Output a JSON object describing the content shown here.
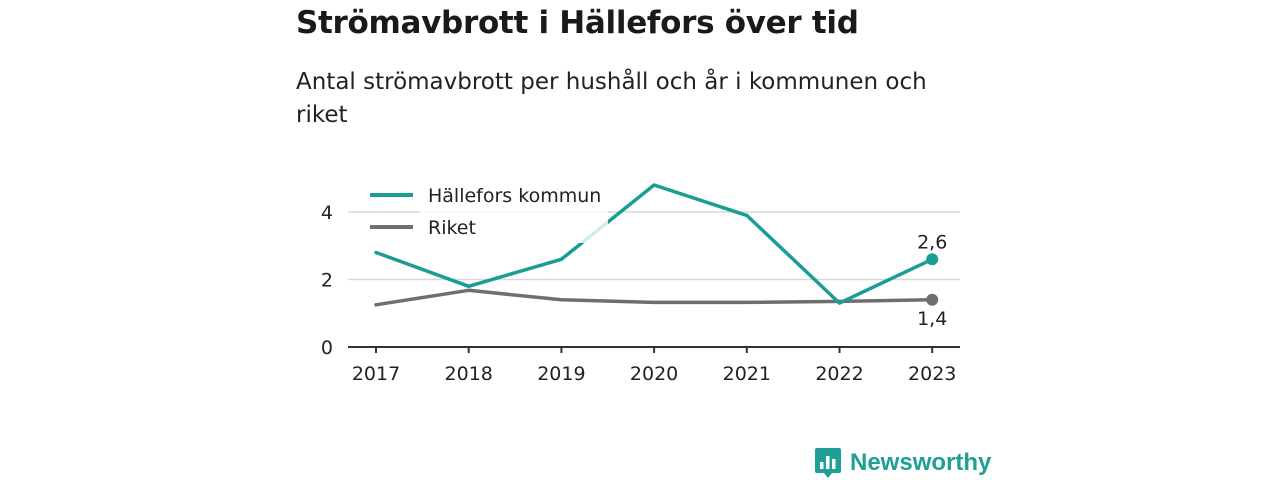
{
  "header": {
    "title": "Strömavbrott i Hällefors över tid",
    "subtitle": "Antal strömavbrott per hushåll och år i kommunen och riket"
  },
  "brand": {
    "name": "Newsworthy",
    "icon": "newsworthy-logo-icon"
  },
  "colors": {
    "teal": "#1a9e94",
    "gray": "#6e6e75",
    "grid": "#d9d9d9",
    "axis": "#333333"
  },
  "chart_data": {
    "type": "line",
    "categories": [
      "2017",
      "2018",
      "2019",
      "2020",
      "2021",
      "2022",
      "2023"
    ],
    "series": [
      {
        "name": "Hällefors kommun",
        "color": "#1a9e94",
        "values": [
          2.8,
          1.8,
          2.6,
          4.8,
          3.9,
          1.3,
          2.6
        ],
        "end_label": "2,6"
      },
      {
        "name": "Riket",
        "color": "#6e6e75",
        "values": [
          1.25,
          1.68,
          1.4,
          1.32,
          1.32,
          1.35,
          1.4
        ],
        "end_label": "1,4"
      }
    ],
    "yticks": [
      0,
      2,
      4
    ],
    "ylim": [
      0,
      4.8
    ],
    "grid": true,
    "legend": "top-left"
  }
}
